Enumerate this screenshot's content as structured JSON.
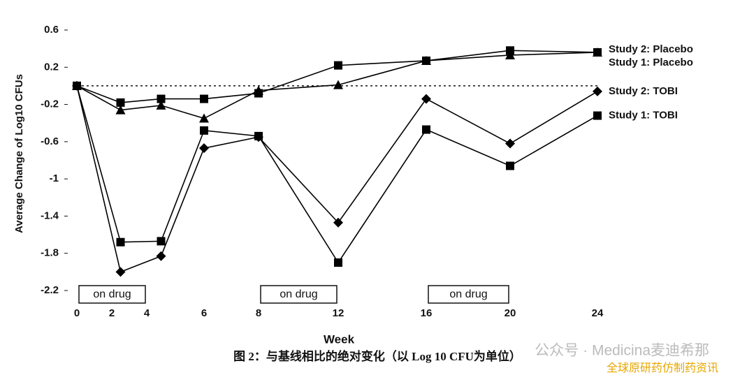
{
  "chart_data": {
    "type": "line",
    "y_label": "Average Change of Log10 CFUs",
    "x_label": "Week",
    "caption": "图 2：与基线相比的绝对变化（以 Log 10 CFU为单位）",
    "watermark": [
      "公众号 · Medicina麦迪希那",
      "全球原研药仿制药资讯"
    ],
    "x": [
      0,
      2.5,
      4.5,
      6,
      8,
      12,
      16,
      20,
      24
    ],
    "series": [
      {
        "name": "Study 2: Placebo",
        "color": "#000000",
        "marker": "square",
        "values": [
          0,
          -0.18,
          -0.14,
          -0.14,
          -0.08,
          0.22,
          0.27,
          0.38,
          0.36
        ]
      },
      {
        "name": "Study 1: Placebo",
        "color": "#000000",
        "marker": "triangle",
        "values": [
          0,
          -0.26,
          -0.21,
          -0.35,
          -0.05,
          0.01,
          0.27,
          0.33,
          0.36
        ]
      },
      {
        "name": "Study 2: TOBI",
        "color": "#000000",
        "marker": "diamond",
        "values": [
          0,
          -2.0,
          -1.83,
          -0.67,
          -0.55,
          -1.47,
          -0.14,
          -0.62,
          -0.06
        ]
      },
      {
        "name": "Study 1: TOBI",
        "color": "#000000",
        "marker": "square",
        "values": [
          0,
          -1.68,
          -1.67,
          -0.48,
          -0.54,
          -1.9,
          -0.47,
          -0.86,
          -0.32
        ]
      }
    ],
    "hline": 0,
    "annotations": [
      {
        "text": "on drug",
        "x": [
          0,
          4
        ]
      },
      {
        "text": "on drug",
        "x": [
          8,
          12
        ]
      },
      {
        "text": "on drug",
        "x": [
          16,
          20
        ]
      }
    ],
    "xticks": [
      0,
      2,
      4,
      6,
      8,
      12,
      16,
      20,
      24
    ],
    "ylim": [
      -2.2,
      0.6
    ],
    "yticks": [
      0.6,
      0.2,
      -0.2,
      -0.6,
      -1.0,
      -1.4,
      -1.8,
      -2.2
    ]
  }
}
